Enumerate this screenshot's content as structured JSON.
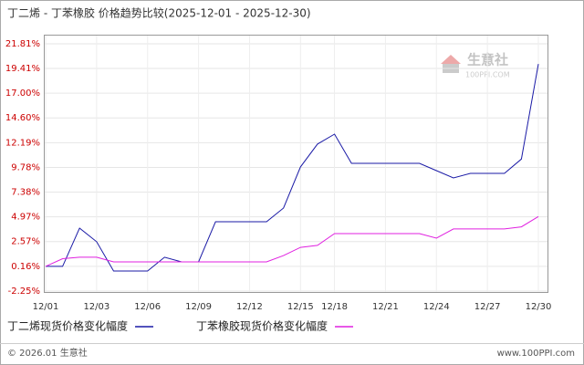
{
  "chart_data": {
    "type": "line",
    "title": "丁二烯 - 丁苯橡胶 价格趋势比较(2025-12-01 - 2025-12-30)",
    "categories": [
      "12/01",
      null,
      null,
      "12/03",
      null,
      null,
      "12/06",
      null,
      null,
      "12/09",
      null,
      null,
      "12/12",
      null,
      null,
      "12/15",
      null,
      "12/18",
      null,
      null,
      "12/21",
      null,
      null,
      "12/24",
      null,
      null,
      "12/27",
      null,
      null,
      "12/30"
    ],
    "series": [
      {
        "name": "丁二烯现货价格变化幅度",
        "color": "#1a1aa6",
        "values": [
          0.16,
          0.16,
          3.88,
          2.55,
          -0.3,
          -0.3,
          -0.3,
          1.04,
          0.59,
          0.59,
          4.5,
          4.5,
          4.5,
          4.5,
          5.83,
          9.83,
          12.05,
          13.02,
          10.18,
          10.18,
          10.18,
          10.18,
          10.18,
          9.47,
          8.76,
          9.2,
          9.2,
          9.2,
          10.6,
          19.85
        ]
      },
      {
        "name": "丁苯橡胶现货价格变化幅度",
        "color": "#e020e0",
        "values": [
          0.16,
          0.9,
          1.04,
          1.04,
          0.59,
          0.59,
          0.59,
          0.59,
          0.59,
          0.59,
          0.59,
          0.59,
          0.59,
          0.59,
          1.2,
          2.0,
          2.2,
          3.34,
          3.34,
          3.34,
          3.34,
          3.34,
          3.34,
          2.9,
          3.8,
          3.8,
          3.8,
          3.8,
          4.0,
          5.0
        ]
      }
    ],
    "ylim": [
      -2.25,
      21.81
    ],
    "yticks": [
      {
        "value": -2.25,
        "label": "-2.25%"
      },
      {
        "value": 0.16,
        "label": "0.16%"
      },
      {
        "value": 2.57,
        "label": "2.57%"
      },
      {
        "value": 4.97,
        "label": "4.97%"
      },
      {
        "value": 7.38,
        "label": "7.38%"
      },
      {
        "value": 9.78,
        "label": "9.78%"
      },
      {
        "value": 12.19,
        "label": "12.19%"
      },
      {
        "value": 14.6,
        "label": "14.60%"
      },
      {
        "value": 17.0,
        "label": "17.00%"
      },
      {
        "value": 19.41,
        "label": "19.41%"
      },
      {
        "value": 21.81,
        "label": "21.81%"
      }
    ],
    "grid": true
  },
  "watermark": {
    "name": "生意社",
    "site": "100PPI.COM"
  },
  "footer": {
    "left": "© 2026.01 生意社",
    "right": "www.100PPI.com"
  }
}
